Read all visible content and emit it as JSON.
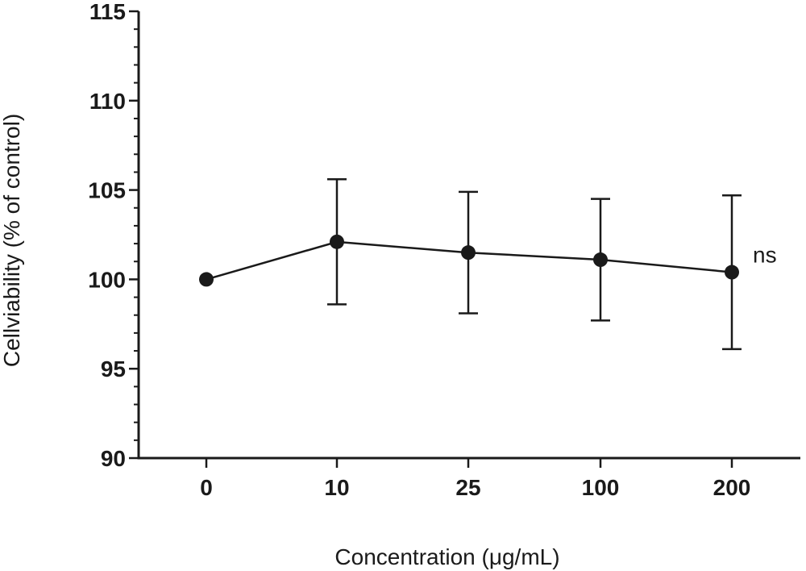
{
  "chart_data": {
    "type": "line",
    "title": "",
    "xlabel": "Concentration (μg/mL)",
    "ylabel": "Cellviability (% of control)",
    "categories": [
      "0",
      "10",
      "25",
      "100",
      "200"
    ],
    "values": [
      100.0,
      102.1,
      101.5,
      101.1,
      100.4
    ],
    "error_upper": [
      100.0,
      105.6,
      104.9,
      104.5,
      104.7
    ],
    "error_lower": [
      100.0,
      98.6,
      98.1,
      97.7,
      96.1
    ],
    "ylim": [
      90,
      115
    ],
    "yticks": [
      "90",
      "95",
      "100",
      "105",
      "110",
      "115"
    ],
    "ytick_values": [
      90,
      95,
      100,
      105,
      110,
      115
    ],
    "annotations": [
      {
        "text": "ns",
        "category": "200"
      }
    ],
    "grid": false,
    "colors": {
      "ink": "#1a1a1a",
      "background": "#ffffff"
    }
  }
}
